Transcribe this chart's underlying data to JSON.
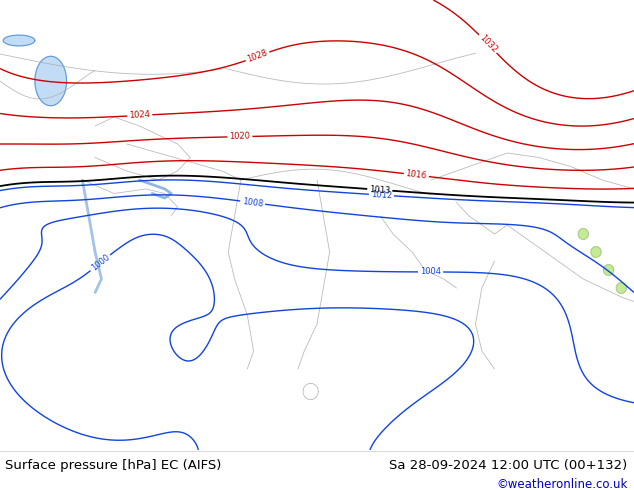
{
  "title_left": "Surface pressure [hPa] EC (AIFS)",
  "title_right": "Sa 28-09-2024 12:00 UTC (00+132)",
  "copyright": "©weatheronline.co.uk",
  "bg_color": "#b5e67a",
  "footer_bg": "#ffffff",
  "footer_text_color": "#000000",
  "copyright_color": "#0000cc",
  "border_color": "#aaaaaa",
  "text_fontsize": 9.5,
  "copyright_fontsize": 8.5,
  "levels_blue": [
    1000,
    1004,
    1008,
    1012
  ],
  "levels_black": [
    1013
  ],
  "levels_red": [
    1016,
    1020,
    1024,
    1028,
    1032
  ],
  "color_blue": "#1144dd",
  "color_black": "#000000",
  "color_red": "#cc0000"
}
